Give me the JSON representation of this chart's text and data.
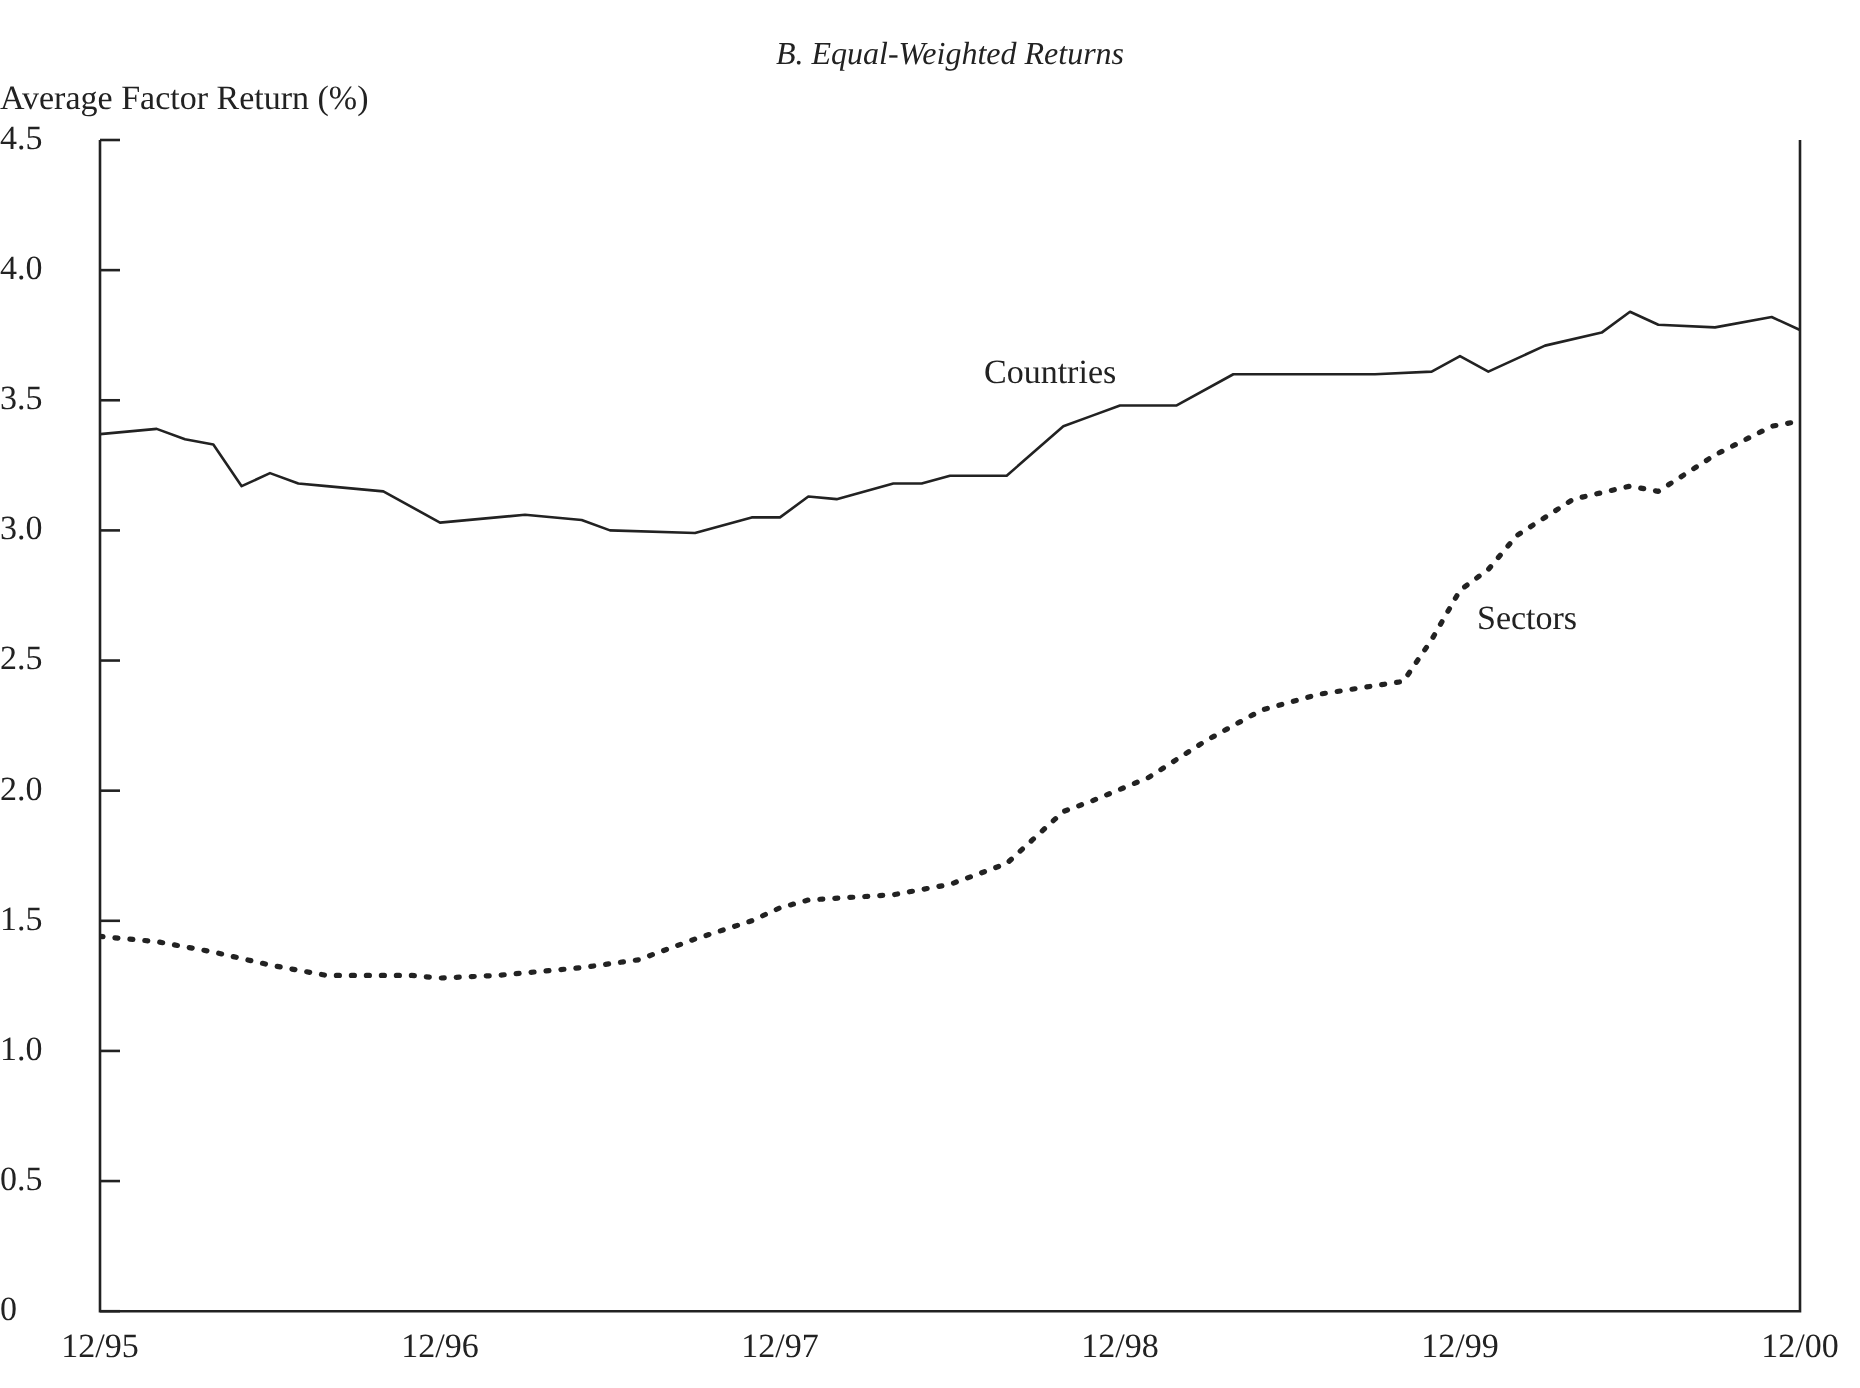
{
  "chart_data": {
    "type": "line",
    "title": "B. Equal-Weighted Returns",
    "ylabel": "Average Factor Return (%)",
    "xlim": [
      "1995-12",
      "2000-12"
    ],
    "xticks": [
      {
        "value": "1995-12",
        "label": "12/95"
      },
      {
        "value": "1996-12",
        "label": "12/96"
      },
      {
        "value": "1997-12",
        "label": "12/97"
      },
      {
        "value": "1998-12",
        "label": "12/98"
      },
      {
        "value": "1999-12",
        "label": "12/99"
      },
      {
        "value": "2000-12",
        "label": "12/00"
      }
    ],
    "ylim": [
      0,
      4.5
    ],
    "yticks": [
      0,
      0.5,
      {
        "value": 1,
        "label": "1.0"
      },
      1.5,
      {
        "value": 2,
        "label": "2.0"
      },
      2.5,
      {
        "value": 3,
        "label": "3.0"
      },
      3.5,
      {
        "value": 4,
        "label": "4.0"
      },
      4.5
    ],
    "grid": false,
    "legend": false,
    "marker": "none",
    "series": [
      {
        "name": "Countries",
        "color": "#222222",
        "line_style": "solid",
        "x": [
          "1995-12",
          "1996-02",
          "1996-03",
          "1996-04",
          "1996-05",
          "1996-06",
          "1996-07",
          "1996-08",
          "1996-10",
          "1996-12",
          "1997-03",
          "1997-05",
          "1997-06",
          "1997-09",
          "1997-11",
          "1997-12",
          "1998-01",
          "1998-02",
          "1998-04",
          "1998-05",
          "1998-06",
          "1998-08",
          "1998-10",
          "1998-11",
          "1998-12",
          "1999-02",
          "1999-04",
          "1999-09",
          "1999-11",
          "1999-12",
          "2000-01",
          "2000-03",
          "2000-05",
          "2000-06",
          "2000-07",
          "2000-09",
          "2000-11",
          "2000-12"
        ],
        "values": [
          3.37,
          3.39,
          3.35,
          3.33,
          3.17,
          3.22,
          3.18,
          3.17,
          3.15,
          3.03,
          3.06,
          3.04,
          3.0,
          2.99,
          3.05,
          3.05,
          3.13,
          3.12,
          3.18,
          3.18,
          3.21,
          3.21,
          3.4,
          3.44,
          3.48,
          3.48,
          3.6,
          3.6,
          3.61,
          3.67,
          3.61,
          3.71,
          3.76,
          3.84,
          3.79,
          3.78,
          3.82,
          3.77
        ]
      },
      {
        "name": "Sectors",
        "color": "#222222",
        "line_style": "dotted",
        "x": [
          "1995-12",
          "1996-02",
          "1996-04",
          "1996-06",
          "1996-08",
          "1996-11",
          "1996-12",
          "1997-02",
          "1997-05",
          "1997-07",
          "1997-09",
          "1997-11",
          "1997-12",
          "1998-01",
          "1998-04",
          "1998-06",
          "1998-08",
          "1998-10",
          "1998-11",
          "1999-01",
          "1999-03",
          "1999-05",
          "1999-07",
          "1999-10",
          "1999-11",
          "1999-12",
          "2000-01",
          "2000-02",
          "2000-04",
          "2000-06",
          "2000-07",
          "2000-09",
          "2000-11",
          "2000-12"
        ],
        "values": [
          1.44,
          1.42,
          1.38,
          1.33,
          1.29,
          1.29,
          1.28,
          1.29,
          1.32,
          1.35,
          1.43,
          1.5,
          1.55,
          1.58,
          1.6,
          1.64,
          1.72,
          1.92,
          1.96,
          2.05,
          2.19,
          2.31,
          2.37,
          2.42,
          2.58,
          2.77,
          2.85,
          2.98,
          3.12,
          3.17,
          3.15,
          3.29,
          3.4,
          3.42
        ]
      }
    ]
  }
}
